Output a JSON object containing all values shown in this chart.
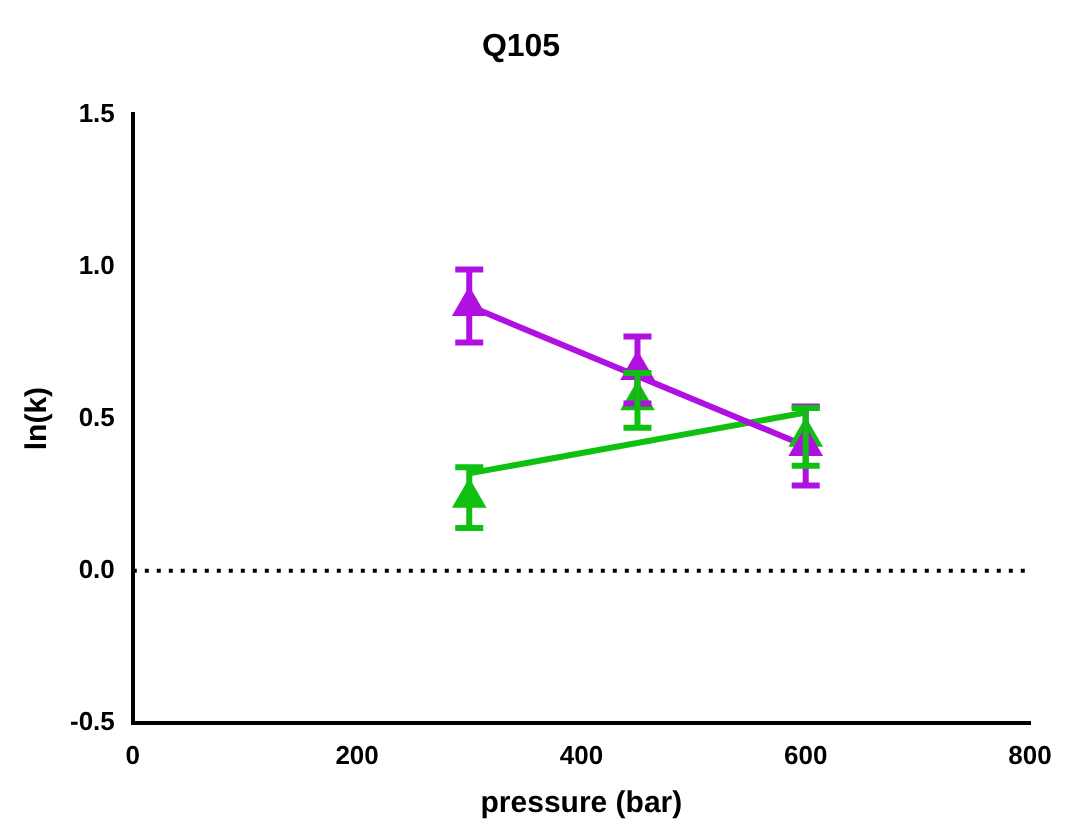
{
  "chart_data": {
    "type": "scatter",
    "title": "Q105",
    "xlabel": "pressure (bar)",
    "ylabel": "ln(k)",
    "series": [
      {
        "color": "#b010e0",
        "x": [
          300,
          450,
          600
        ],
        "values": [
          0.87,
          0.66,
          0.41
        ],
        "errors": [
          0.12,
          0.11,
          0.13
        ],
        "marker": "triangle"
      },
      {
        "color": "#10c010",
        "x": [
          300,
          450,
          600
        ],
        "values": [
          0.24,
          0.56,
          0.44
        ],
        "errors": [
          0.1,
          0.09,
          0.095
        ],
        "marker": "triangle"
      },
      {
        "type": "line",
        "color": "#b010e0",
        "x": [
          300,
          600
        ],
        "values": [
          0.87,
          0.41
        ],
        "marker": "none"
      },
      {
        "type": "line",
        "color": "#10c010",
        "x": [
          300,
          600
        ],
        "values": [
          0.32,
          0.52
        ],
        "marker": "none"
      }
    ],
    "xlim": [
      0,
      800
    ],
    "xticks": [
      0,
      200,
      400,
      600,
      800
    ],
    "ylim": [
      -0.5,
      1.5
    ],
    "yticks": [
      {
        "value": -0.5,
        "label": "-0.5"
      },
      {
        "value": 0,
        "label": "0.0"
      },
      {
        "value": 0.5,
        "label": "0.5"
      },
      {
        "value": 1,
        "label": "1.0"
      },
      {
        "value": 1.5,
        "label": "1.5"
      }
    ],
    "ref_lines": [
      {
        "axis": "y",
        "value": 0,
        "line_style": "dotted",
        "color": "#000000"
      }
    ],
    "grid": false,
    "legend": false
  }
}
